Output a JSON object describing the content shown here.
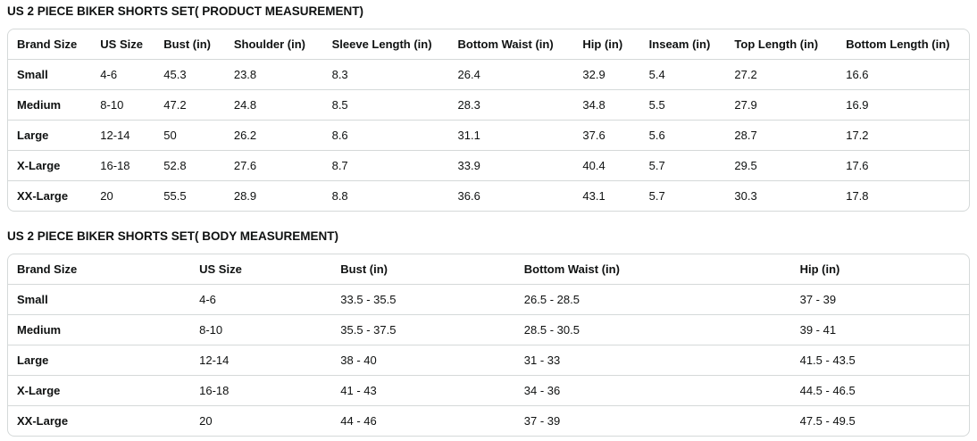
{
  "colors": {
    "text": "#0f1111",
    "border": "#d5d9d9",
    "background": "#ffffff"
  },
  "tables": [
    {
      "title": "US 2 PIECE BIKER SHORTS SET( PRODUCT MEASUREMENT)",
      "columns": [
        "Brand Size",
        "US Size",
        "Bust (in)",
        "Shoulder (in)",
        "Sleeve Length (in)",
        "Bottom Waist (in)",
        "Hip (in)",
        "Inseam (in)",
        "Top Length (in)",
        "Bottom Length (in)"
      ],
      "rows": [
        [
          "Small",
          "4-6",
          "45.3",
          "23.8",
          "8.3",
          "26.4",
          "32.9",
          "5.4",
          "27.2",
          "16.6"
        ],
        [
          "Medium",
          "8-10",
          "47.2",
          "24.8",
          "8.5",
          "28.3",
          "34.8",
          "5.5",
          "27.9",
          "16.9"
        ],
        [
          "Large",
          "12-14",
          "50",
          "26.2",
          "8.6",
          "31.1",
          "37.6",
          "5.6",
          "28.7",
          "17.2"
        ],
        [
          "X-Large",
          "16-18",
          "52.8",
          "27.6",
          "8.7",
          "33.9",
          "40.4",
          "5.7",
          "29.5",
          "17.6"
        ],
        [
          "XX-Large",
          "20",
          "55.5",
          "28.9",
          "8.8",
          "36.6",
          "43.1",
          "5.7",
          "30.3",
          "17.8"
        ]
      ]
    },
    {
      "title": "US 2 PIECE BIKER SHORTS SET( BODY MEASUREMENT)",
      "columns": [
        "Brand Size",
        "US Size",
        "Bust (in)",
        "Bottom Waist (in)",
        "Hip (in)"
      ],
      "rows": [
        [
          "Small",
          "4-6",
          "33.5 - 35.5",
          "26.5 - 28.5",
          "37 - 39"
        ],
        [
          "Medium",
          "8-10",
          "35.5 - 37.5",
          "28.5 - 30.5",
          "39 - 41"
        ],
        [
          "Large",
          "12-14",
          "38 - 40",
          "31 - 33",
          "41.5 - 43.5"
        ],
        [
          "X-Large",
          "16-18",
          "41 - 43",
          "34 - 36",
          "44.5 - 46.5"
        ],
        [
          "XX-Large",
          "20",
          "44 - 46",
          "37 - 39",
          "47.5 - 49.5"
        ]
      ]
    }
  ]
}
